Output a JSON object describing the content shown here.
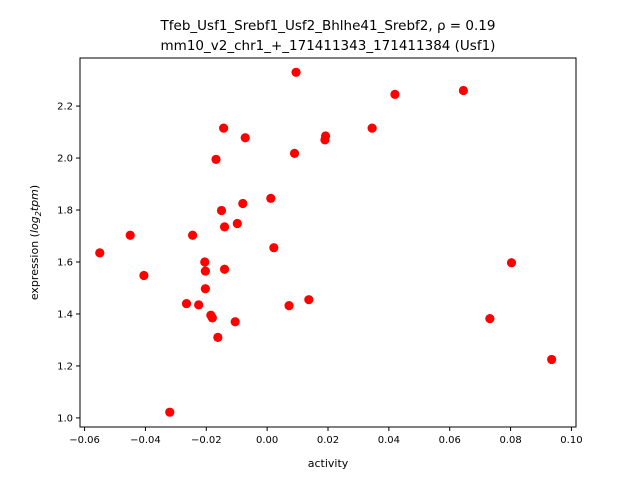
{
  "chart_data": {
    "type": "scatter",
    "title_line1": "Tfeb_Usf1_Srebf1_Usf2_Bhlhe41_Srebf2, ρ = 0.19",
    "title_line2": "mm10_v2_chr1_+_171411343_171411384 (Usf1)",
    "xlabel": "activity",
    "ylabel_main": "expression (",
    "ylabel_log": "log",
    "ylabel_sub": "2",
    "ylabel_tpm": "tpm",
    "ylabel_close": ")",
    "xlim": [
      -0.0615,
      0.1015
    ],
    "ylim": [
      0.965,
      2.385
    ],
    "x_ticks": [
      -0.06,
      -0.04,
      -0.02,
      0.0,
      0.02,
      0.04,
      0.06,
      0.08,
      0.1
    ],
    "x_tick_labels": [
      "−0.06",
      "−0.04",
      "−0.02",
      "0.00",
      "0.02",
      "0.04",
      "0.06",
      "0.08",
      "0.10"
    ],
    "y_ticks": [
      1.0,
      1.2,
      1.4,
      1.6,
      1.8,
      2.0,
      2.2
    ],
    "y_tick_labels": [
      "1.0",
      "1.2",
      "1.4",
      "1.6",
      "1.8",
      "2.0",
      "2.2"
    ],
    "marker_color": "#ff0000",
    "points": [
      {
        "x": -0.055,
        "y": 1.635
      },
      {
        "x": -0.045,
        "y": 1.703
      },
      {
        "x": -0.0405,
        "y": 1.548
      },
      {
        "x": -0.032,
        "y": 1.022
      },
      {
        "x": -0.0265,
        "y": 1.44
      },
      {
        "x": -0.0245,
        "y": 1.703
      },
      {
        "x": -0.0225,
        "y": 1.435
      },
      {
        "x": -0.0205,
        "y": 1.6
      },
      {
        "x": -0.0203,
        "y": 1.565
      },
      {
        "x": -0.0203,
        "y": 1.497
      },
      {
        "x": -0.0185,
        "y": 1.395
      },
      {
        "x": -0.018,
        "y": 1.385
      },
      {
        "x": -0.0168,
        "y": 1.995
      },
      {
        "x": -0.0162,
        "y": 1.31
      },
      {
        "x": -0.015,
        "y": 1.798
      },
      {
        "x": -0.0143,
        "y": 2.115
      },
      {
        "x": -0.014,
        "y": 1.735
      },
      {
        "x": -0.014,
        "y": 1.572
      },
      {
        "x": -0.0105,
        "y": 1.37
      },
      {
        "x": -0.0098,
        "y": 1.748
      },
      {
        "x": -0.008,
        "y": 1.825
      },
      {
        "x": -0.0072,
        "y": 2.078
      },
      {
        "x": 0.0012,
        "y": 1.845
      },
      {
        "x": 0.0022,
        "y": 1.655
      },
      {
        "x": 0.0072,
        "y": 1.432
      },
      {
        "x": 0.009,
        "y": 2.018
      },
      {
        "x": 0.0095,
        "y": 2.33
      },
      {
        "x": 0.0137,
        "y": 1.455
      },
      {
        "x": 0.0192,
        "y": 2.085
      },
      {
        "x": 0.019,
        "y": 2.07
      },
      {
        "x": 0.0345,
        "y": 2.115
      },
      {
        "x": 0.042,
        "y": 2.245
      },
      {
        "x": 0.0645,
        "y": 2.26
      },
      {
        "x": 0.0732,
        "y": 1.382
      },
      {
        "x": 0.0803,
        "y": 1.597
      },
      {
        "x": 0.0935,
        "y": 1.225
      }
    ]
  }
}
